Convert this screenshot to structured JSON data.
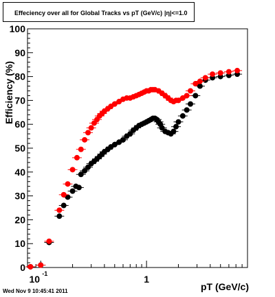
{
  "header": {
    "title": "Effeciency over all for Global Tracks vs pT (GeV/c)",
    "title_overlap": "|η|<=1.0"
  },
  "footer": {
    "timestamp": "Wed Nov  9 10:45:41 2011"
  },
  "chart_data": {
    "type": "scatter",
    "title": "Effeciency over all for Global Tracks vs pT (GeV/c)",
    "xlabel": "pT (GeV/c)",
    "ylabel": "Efficiency (%)",
    "x_scale": "log",
    "xlim": [
      0.075,
      9.0
    ],
    "ylim": [
      0,
      100
    ],
    "y_ticks": [
      0,
      10,
      20,
      30,
      40,
      50,
      60,
      70,
      80,
      90,
      100
    ],
    "x_tick_labels": [
      {
        "value": 0.1,
        "base": "10",
        "exp": "-1"
      },
      {
        "value": 1,
        "base": "1",
        "exp": ""
      }
    ],
    "grid": false,
    "colors": {
      "series_black": "#000000",
      "series_red": "#ff0000"
    },
    "series": [
      {
        "color": "#000000",
        "points": [
          [
            0.08,
            0.3
          ],
          [
            0.1,
            1
          ],
          [
            0.12,
            10.5
          ],
          [
            0.15,
            21.5
          ],
          [
            0.165,
            26
          ],
          [
            0.18,
            29.5
          ],
          [
            0.2,
            32
          ],
          [
            0.215,
            34
          ],
          [
            0.23,
            33.5
          ],
          [
            0.24,
            39
          ],
          [
            0.26,
            40.5
          ],
          [
            0.28,
            42
          ],
          [
            0.3,
            43.5
          ],
          [
            0.32,
            44.5
          ],
          [
            0.34,
            45.5
          ],
          [
            0.36,
            46.5
          ],
          [
            0.38,
            47.5
          ],
          [
            0.4,
            48.5
          ],
          [
            0.43,
            49.5
          ],
          [
            0.46,
            50.5
          ],
          [
            0.5,
            51.5
          ],
          [
            0.55,
            52.5
          ],
          [
            0.6,
            53.5
          ],
          [
            0.65,
            55
          ],
          [
            0.7,
            56
          ],
          [
            0.75,
            57.5
          ],
          [
            0.8,
            58.5
          ],
          [
            0.85,
            59.5
          ],
          [
            0.9,
            60
          ],
          [
            0.95,
            60.5
          ],
          [
            1.0,
            61
          ],
          [
            1.05,
            61.5
          ],
          [
            1.1,
            62
          ],
          [
            1.15,
            62.5
          ],
          [
            1.2,
            62.5
          ],
          [
            1.25,
            62
          ],
          [
            1.3,
            61
          ],
          [
            1.35,
            60
          ],
          [
            1.4,
            58.5
          ],
          [
            1.5,
            57
          ],
          [
            1.6,
            56.5
          ],
          [
            1.7,
            56
          ],
          [
            1.8,
            57
          ],
          [
            1.9,
            59
          ],
          [
            2.0,
            61
          ],
          [
            2.2,
            63.5
          ],
          [
            2.4,
            66
          ],
          [
            2.6,
            68.5
          ],
          [
            2.9,
            72
          ],
          [
            3.2,
            76
          ],
          [
            3.6,
            78.5
          ],
          [
            4.2,
            79.5
          ],
          [
            5.0,
            80
          ],
          [
            6.0,
            80.5
          ],
          [
            7.2,
            81
          ]
        ]
      },
      {
        "color": "#ff0000",
        "points": [
          [
            0.08,
            0.3
          ],
          [
            0.1,
            1
          ],
          [
            0.12,
            11
          ],
          [
            0.15,
            24
          ],
          [
            0.165,
            30.5
          ],
          [
            0.18,
            35
          ],
          [
            0.2,
            41
          ],
          [
            0.22,
            46
          ],
          [
            0.24,
            49.5
          ],
          [
            0.26,
            53.5
          ],
          [
            0.28,
            56.5
          ],
          [
            0.3,
            58.5
          ],
          [
            0.32,
            60.5
          ],
          [
            0.34,
            62
          ],
          [
            0.36,
            63.5
          ],
          [
            0.38,
            64.5
          ],
          [
            0.4,
            65.5
          ],
          [
            0.43,
            66.5
          ],
          [
            0.46,
            67.5
          ],
          [
            0.5,
            68.5
          ],
          [
            0.55,
            69.5
          ],
          [
            0.6,
            70.5
          ],
          [
            0.65,
            71
          ],
          [
            0.7,
            71
          ],
          [
            0.75,
            71.5
          ],
          [
            0.8,
            72
          ],
          [
            0.85,
            72.5
          ],
          [
            0.9,
            73
          ],
          [
            0.95,
            73.5
          ],
          [
            1.0,
            74
          ],
          [
            1.05,
            74
          ],
          [
            1.1,
            74.5
          ],
          [
            1.15,
            74.5
          ],
          [
            1.2,
            74.5
          ],
          [
            1.3,
            74
          ],
          [
            1.4,
            73
          ],
          [
            1.5,
            72
          ],
          [
            1.6,
            71
          ],
          [
            1.7,
            70
          ],
          [
            1.8,
            69.5
          ],
          [
            1.9,
            70
          ],
          [
            2.0,
            70
          ],
          [
            2.2,
            71
          ],
          [
            2.4,
            72
          ],
          [
            2.6,
            74
          ],
          [
            2.9,
            77
          ],
          [
            3.2,
            78
          ],
          [
            3.6,
            79.5
          ],
          [
            4.2,
            81
          ],
          [
            5.0,
            81.5
          ],
          [
            6.0,
            82
          ],
          [
            7.2,
            82.5
          ]
        ]
      }
    ]
  }
}
